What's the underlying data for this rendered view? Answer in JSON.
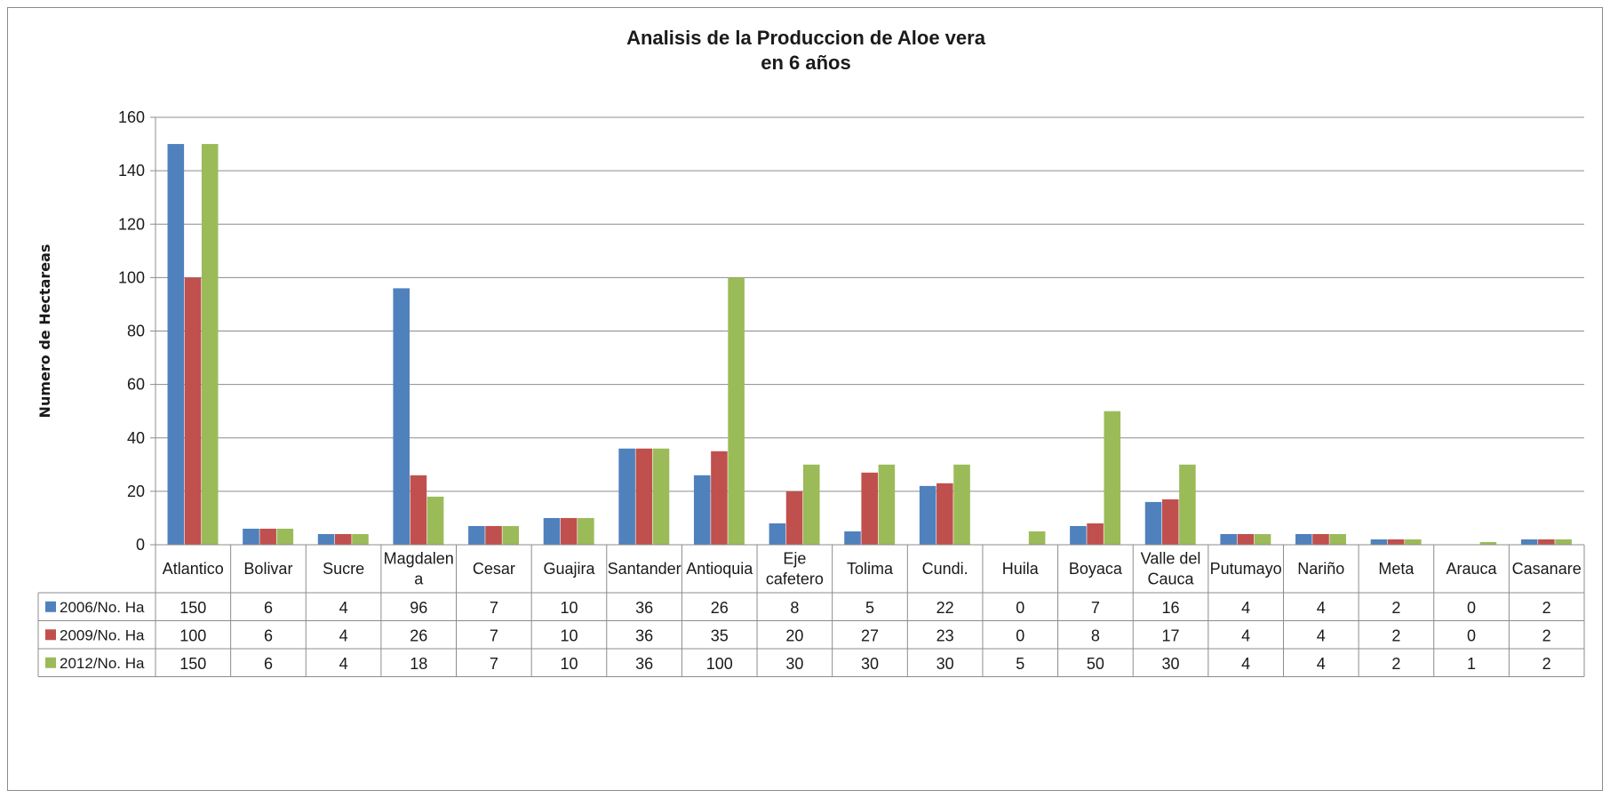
{
  "chart_data": {
    "type": "bar",
    "title": [
      "Analisis de la Produccion  de Aloe vera",
      "en 6 años"
    ],
    "xlabel": "",
    "ylabel": "Numero de Hectareas",
    "ylim": [
      0,
      160
    ],
    "yticks": [
      0,
      20,
      40,
      60,
      80,
      100,
      120,
      140,
      160
    ],
    "grid": true,
    "legend": "data-table-left",
    "categories": [
      [
        "Atlantico"
      ],
      [
        "Bolivar"
      ],
      [
        "Sucre"
      ],
      [
        "Magdalen",
        "a"
      ],
      [
        "Cesar"
      ],
      [
        "Guajira"
      ],
      [
        "Santander"
      ],
      [
        "Antioquia"
      ],
      [
        "Eje",
        "cafetero"
      ],
      [
        "Tolima"
      ],
      [
        "Cundi."
      ],
      [
        "Huila"
      ],
      [
        "Boyaca"
      ],
      [
        "Valle del",
        "Cauca"
      ],
      [
        "Putumayo"
      ],
      [
        "Nariño"
      ],
      [
        "Meta"
      ],
      [
        "Arauca"
      ],
      [
        "Casanare"
      ]
    ],
    "series": [
      {
        "name": "2006/No. Ha",
        "color": "#4F81BD",
        "values": [
          150,
          6,
          4,
          96,
          7,
          10,
          36,
          26,
          8,
          5,
          22,
          0,
          7,
          16,
          4,
          4,
          2,
          0,
          2
        ]
      },
      {
        "name": "2009/No. Ha",
        "color": "#C0504D",
        "values": [
          100,
          6,
          4,
          26,
          7,
          10,
          36,
          35,
          20,
          27,
          23,
          0,
          8,
          17,
          4,
          4,
          2,
          0,
          2
        ]
      },
      {
        "name": "2012/No. Ha",
        "color": "#9BBB59",
        "values": [
          150,
          6,
          4,
          18,
          7,
          10,
          36,
          100,
          30,
          30,
          30,
          5,
          50,
          30,
          4,
          4,
          2,
          1,
          2
        ]
      }
    ]
  }
}
